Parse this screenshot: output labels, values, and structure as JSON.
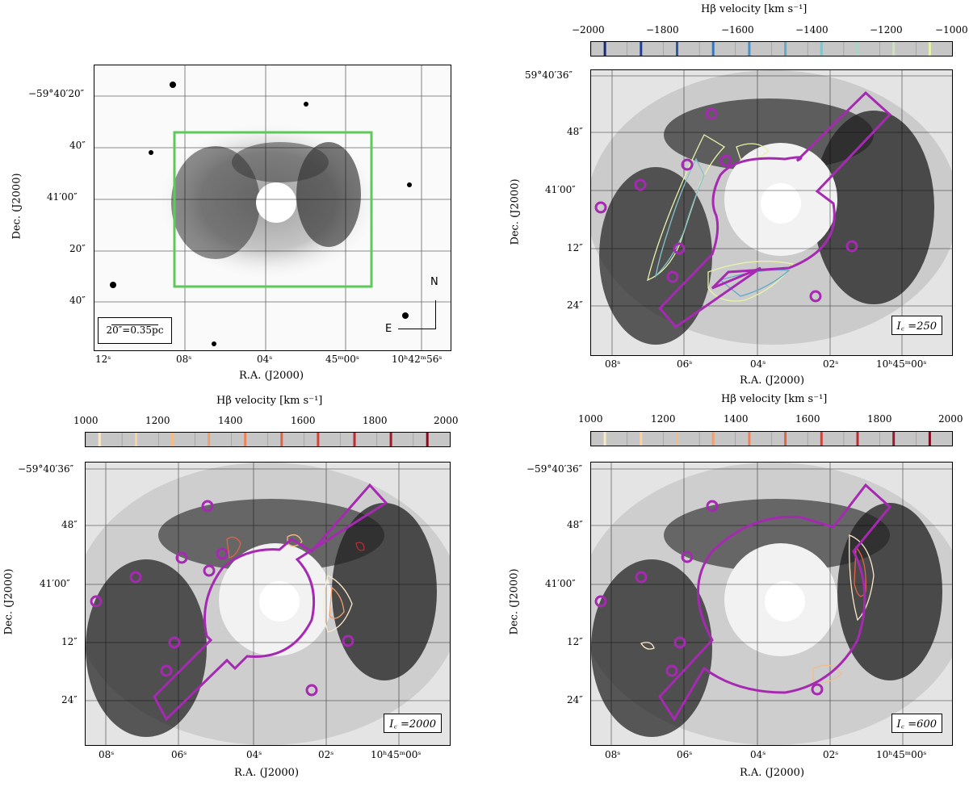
{
  "panels": {
    "top_left": {
      "ra_ticks": [
        "12ˢ",
        "08ˢ",
        "04ˢ",
        "45ᵐ00ˢ",
        "10ʰ42ᵐ56ˢ"
      ],
      "dec_ticks": [
        "−59°40′20″",
        "40″",
        "41′00″",
        "20″",
        "40″"
      ],
      "xlabel": "R.A. (J2000)",
      "ylabel": "Dec. (J2000)",
      "scalebar": "20″=0.35pc",
      "compass_n": "N",
      "compass_e": "E",
      "box_color": "#5ec95a"
    },
    "top_right": {
      "colorbar_title": "Hβ velocity [km s⁻¹]",
      "colorbar_ticks": [
        "−2000",
        "−1800",
        "−1600",
        "−1400",
        "−1200",
        "−1000"
      ],
      "ra_ticks": [
        "08ˢ",
        "06ˢ",
        "04ˢ",
        "02ˢ",
        "10ʰ45ᵐ00ˢ"
      ],
      "dec_ticks": [
        "59°40′36″",
        "48″",
        "41′00″",
        "12″",
        "24″"
      ],
      "xlabel": "R.A. (J2000)",
      "ylabel": "Dec. (J2000)",
      "label": "I꜀ =250",
      "mask_color": "#a52ab1"
    },
    "bottom_left": {
      "colorbar_title": "Hβ velocity [km s⁻¹]",
      "colorbar_ticks": [
        "1000",
        "1200",
        "1400",
        "1600",
        "1800",
        "2000"
      ],
      "ra_ticks": [
        "08ˢ",
        "06ˢ",
        "04ˢ",
        "02ˢ",
        "10ʰ45ᵐ00ˢ"
      ],
      "dec_ticks": [
        "−59°40′36″",
        "48″",
        "41′00″",
        "12″",
        "24″"
      ],
      "xlabel": "R.A. (J2000)",
      "ylabel": "Dec. (J2000)",
      "label": "I꜀ =2000"
    },
    "bottom_right": {
      "colorbar_title": "Hβ velocity [km s⁻¹]",
      "colorbar_ticks": [
        "1000",
        "1200",
        "1400",
        "1600",
        "1800",
        "2000"
      ],
      "ra_ticks": [
        "08ˢ",
        "06ˢ",
        "04ˢ",
        "02ˢ",
        "10ʰ45ᵐ00ˢ"
      ],
      "dec_ticks": [
        "−59°40′36″",
        "48″",
        "41′00″",
        "12″",
        "24″"
      ],
      "xlabel": "R.A. (J2000)",
      "ylabel": "Dec. (J2000)",
      "label": "I꜀ =600"
    }
  },
  "colors": {
    "blue_scale": [
      "#1a2a6c",
      "#233f8f",
      "#2c5aa8",
      "#3776b8",
      "#4a90c2",
      "#62aac9",
      "#82c3cc",
      "#a6d6c5",
      "#c9e6b8",
      "#e9f3a8"
    ],
    "red_scale": [
      "#fbe8c8",
      "#f8d3a6",
      "#f5bb86",
      "#f1a06c",
      "#ea8358",
      "#df6447",
      "#d0453a",
      "#bb2b30",
      "#a11a27",
      "#820d1f"
    ],
    "mask": "#a52ab1",
    "green_box": "#5ec95a"
  }
}
